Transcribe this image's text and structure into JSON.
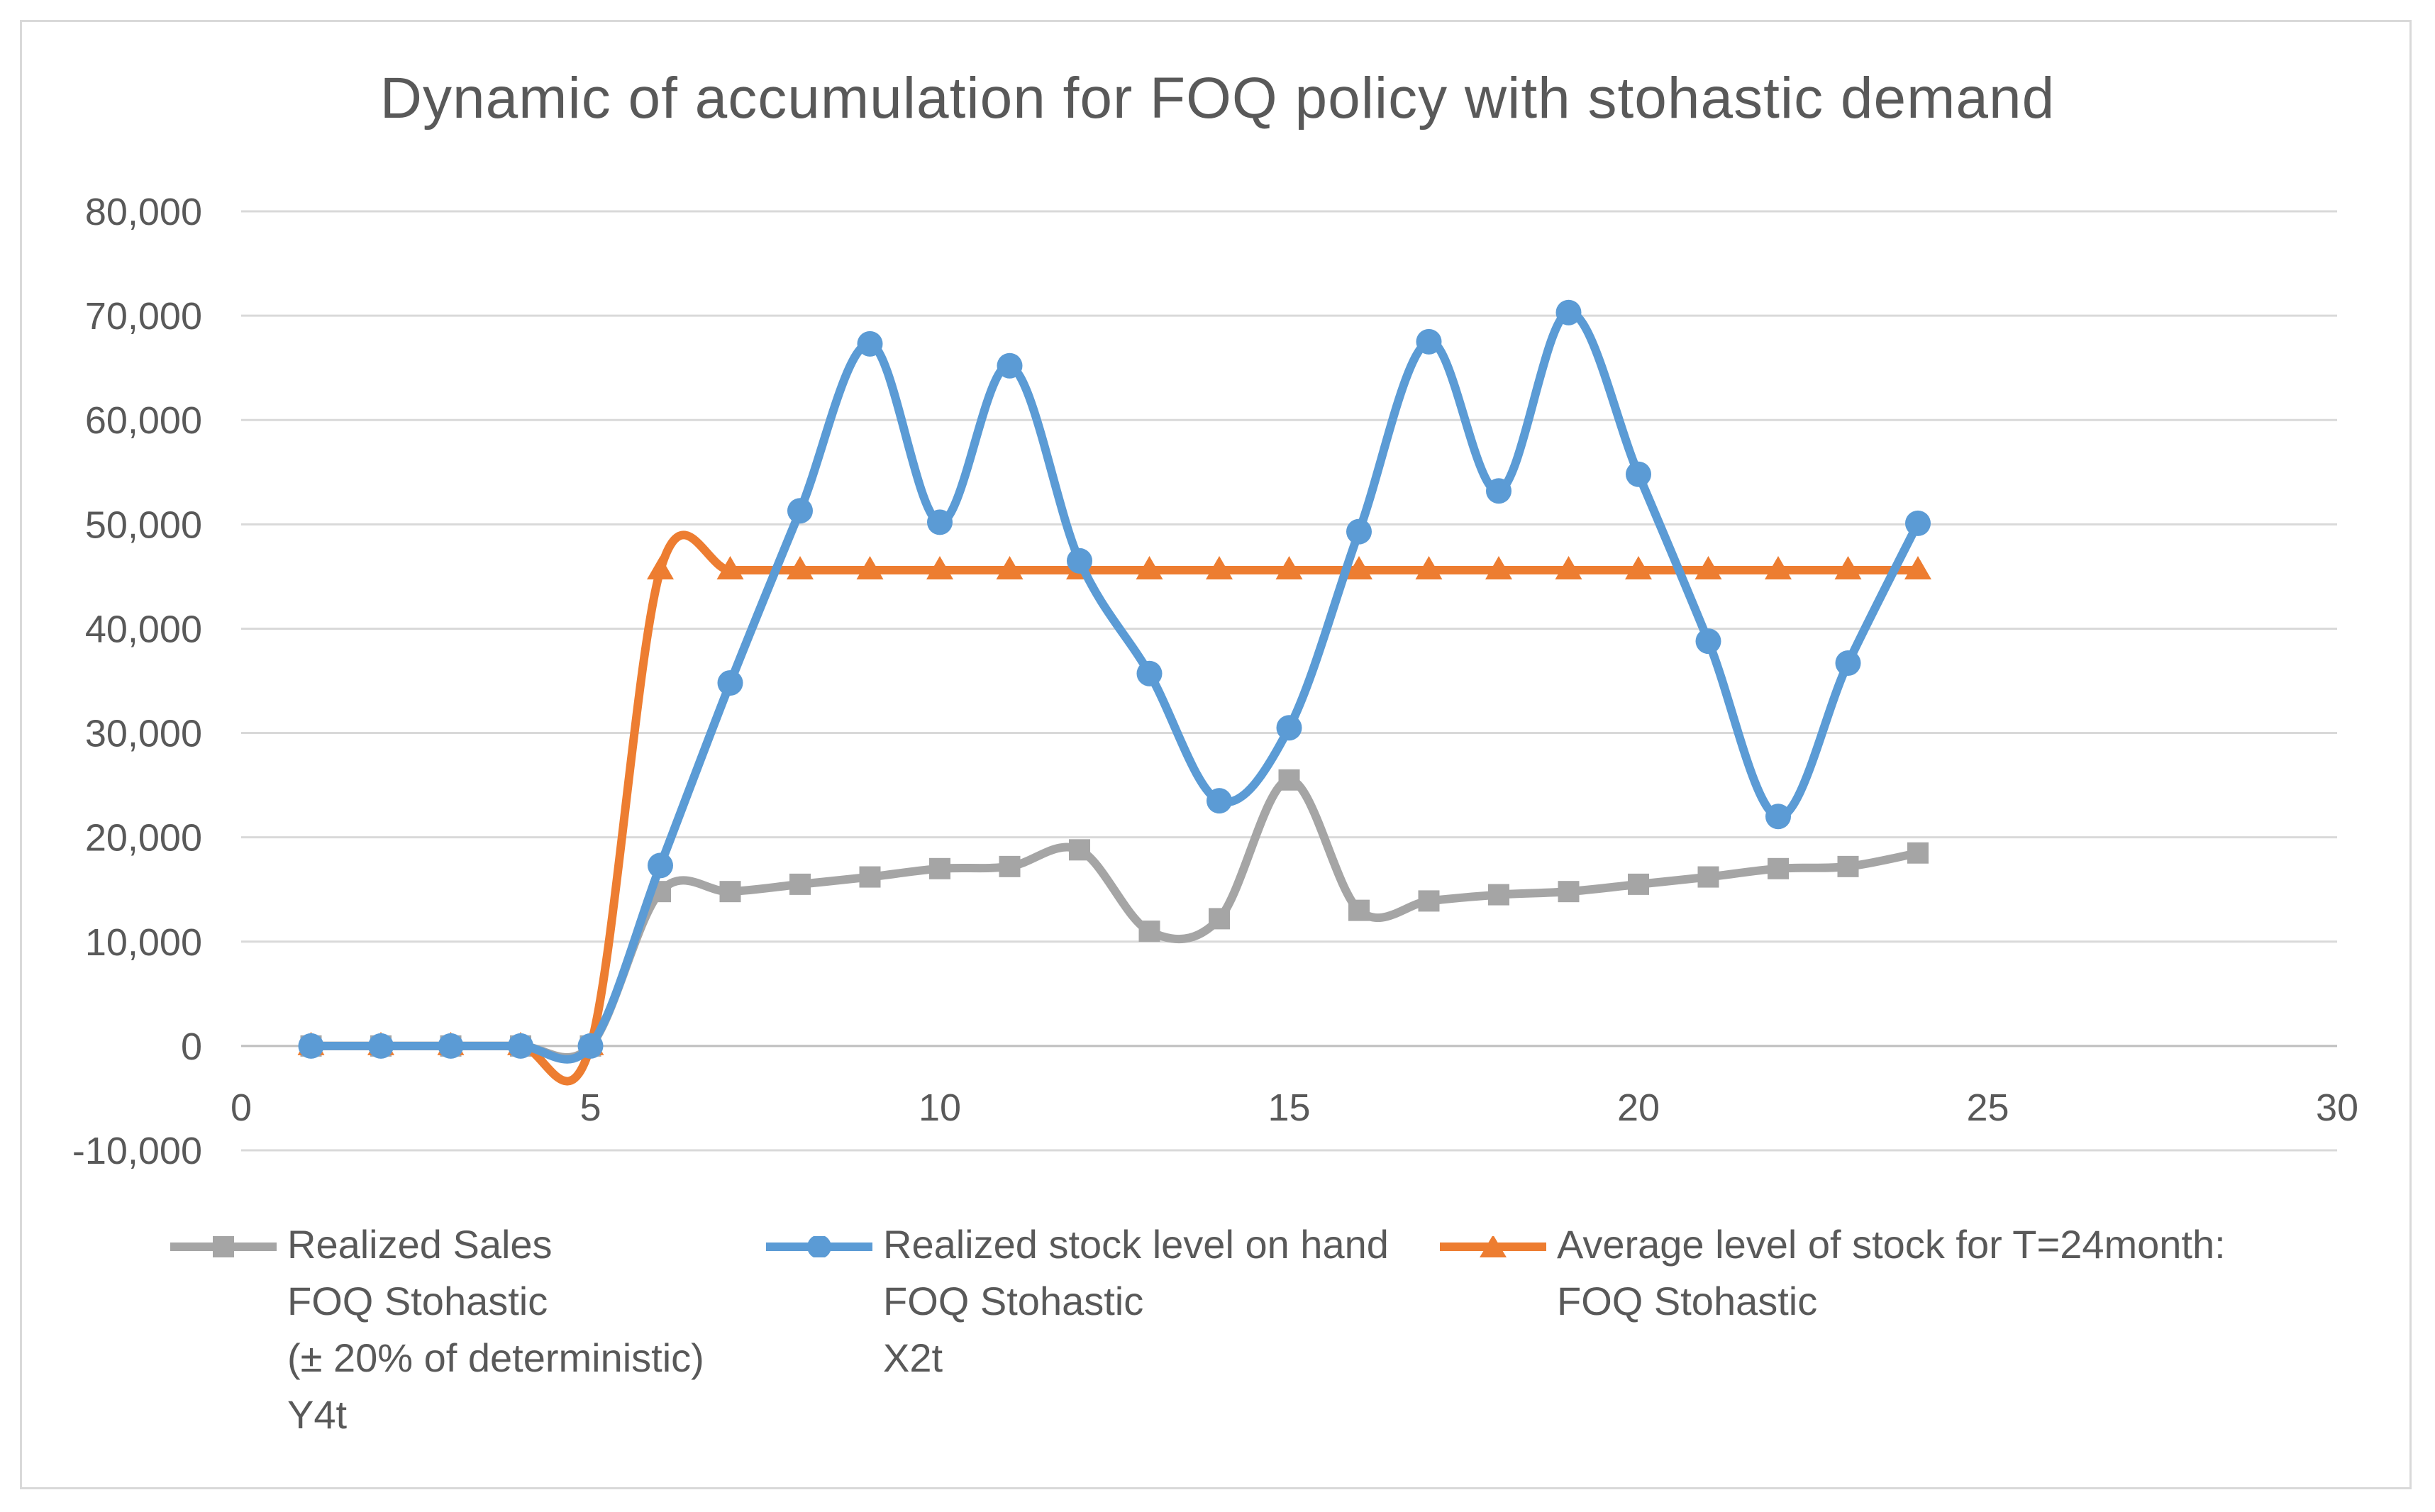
{
  "chart_data": {
    "type": "line",
    "title": "Dynamic of accumulation for FOQ policy with stohastic demand",
    "xlabel": "",
    "ylabel": "",
    "xlim": [
      0,
      30
    ],
    "ylim": [
      -10000,
      80000
    ],
    "x_ticks": [
      "0",
      "5",
      "10",
      "15",
      "20",
      "25",
      "30"
    ],
    "y_ticks": [
      "80,000",
      "70,000",
      "60,000",
      "50,000",
      "40,000",
      "30,000",
      "20,000",
      "10,000",
      "0",
      "-10,000"
    ],
    "grid": true,
    "legend_position": "bottom",
    "x": [
      1,
      2,
      3,
      4,
      5,
      6,
      7,
      8,
      9,
      10,
      11,
      12,
      13,
      14,
      15,
      16,
      17,
      18,
      19,
      20,
      21,
      22,
      23,
      24
    ],
    "series": [
      {
        "name": "Realized Sales",
        "legend_lines": [
          "Realized Sales",
          "FOQ Stohastic",
          "(± 20% of deterministic)",
          "Y4t"
        ],
        "color": "#a5a5a5",
        "marker": "square",
        "values": [
          0,
          0,
          0,
          0,
          0,
          14800,
          14800,
          15500,
          16200,
          17000,
          17200,
          18800,
          11000,
          12200,
          25500,
          13000,
          13900,
          14500,
          14800,
          15500,
          16200,
          17000,
          17200,
          18500
        ]
      },
      {
        "name": "Realized stock level on hand",
        "legend_lines": [
          "Realized stock level on hand",
          "FOQ Stohastic",
          "X2t"
        ],
        "color": "#5b9bd5",
        "marker": "circle",
        "values": [
          0,
          0,
          0,
          0,
          0,
          17300,
          34800,
          51300,
          67300,
          50200,
          65200,
          46500,
          35700,
          23500,
          30500,
          49300,
          67500,
          53200,
          70300,
          54800,
          38800,
          22000,
          36700,
          50100
        ]
      },
      {
        "name": "Average level of stock for T=24month:",
        "legend_lines": [
          "Average level of stock for T=24month:",
          "FOQ Stohastic"
        ],
        "color": "#ed7d31",
        "marker": "triangle",
        "values": [
          0,
          0,
          0,
          0,
          0,
          45600,
          45600,
          45600,
          45600,
          45600,
          45600,
          45600,
          45600,
          45600,
          45600,
          45600,
          45600,
          45600,
          45600,
          45600,
          45600,
          45600,
          45600,
          45600
        ]
      }
    ]
  }
}
